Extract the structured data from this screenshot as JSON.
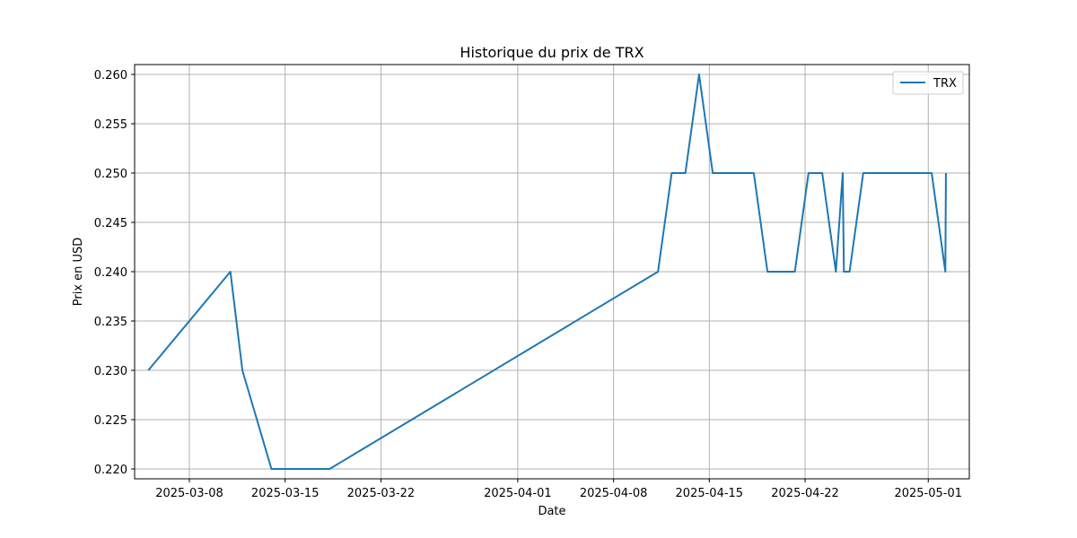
{
  "chart_data": {
    "type": "line",
    "title": "Historique du prix de TRX",
    "xlabel": "Date",
    "ylabel": "Prix en USD",
    "xlim": [
      "2025-03-04T00:00",
      "2025-05-04T00:00"
    ],
    "ylim": [
      0.219,
      0.261
    ],
    "y_ticks": [
      "0.220",
      "0.225",
      "0.230",
      "0.235",
      "0.240",
      "0.245",
      "0.250",
      "0.255",
      "0.260"
    ],
    "x_ticks": [
      "2025-03-08",
      "2025-03-15",
      "2025-03-22",
      "2025-04-01",
      "2025-04-08",
      "2025-04-15",
      "2025-04-22",
      "2025-05-01"
    ],
    "grid": true,
    "legend": "top-right",
    "colors": {
      "line": "#1f77b4",
      "grid": "#b0b0b0"
    },
    "series": [
      {
        "name": "TRX",
        "points": [
          {
            "x": "2025-03-05T00:00",
            "y": 0.23
          },
          {
            "x": "2025-03-11T00:00",
            "y": 0.24
          },
          {
            "x": "2025-03-11T21:00",
            "y": 0.23
          },
          {
            "x": "2025-03-14T00:00",
            "y": 0.22
          },
          {
            "x": "2025-03-18T06:00",
            "y": 0.22
          },
          {
            "x": "2025-04-11T06:00",
            "y": 0.24
          },
          {
            "x": "2025-04-12T06:00",
            "y": 0.25
          },
          {
            "x": "2025-04-13T06:00",
            "y": 0.25
          },
          {
            "x": "2025-04-14T06:00",
            "y": 0.26
          },
          {
            "x": "2025-04-15T06:00",
            "y": 0.25
          },
          {
            "x": "2025-04-18T06:00",
            "y": 0.25
          },
          {
            "x": "2025-04-19T06:00",
            "y": 0.24
          },
          {
            "x": "2025-04-21T06:00",
            "y": 0.24
          },
          {
            "x": "2025-04-22T06:00",
            "y": 0.25
          },
          {
            "x": "2025-04-23T06:00",
            "y": 0.25
          },
          {
            "x": "2025-04-24T06:00",
            "y": 0.24
          },
          {
            "x": "2025-04-24T18:00",
            "y": 0.25
          },
          {
            "x": "2025-04-24T20:00",
            "y": 0.24
          },
          {
            "x": "2025-04-25T06:00",
            "y": 0.24
          },
          {
            "x": "2025-04-26T06:00",
            "y": 0.25
          },
          {
            "x": "2025-05-01T06:00",
            "y": 0.25
          },
          {
            "x": "2025-05-02T06:00",
            "y": 0.24
          },
          {
            "x": "2025-05-02T07:00",
            "y": 0.25
          }
        ]
      }
    ]
  }
}
